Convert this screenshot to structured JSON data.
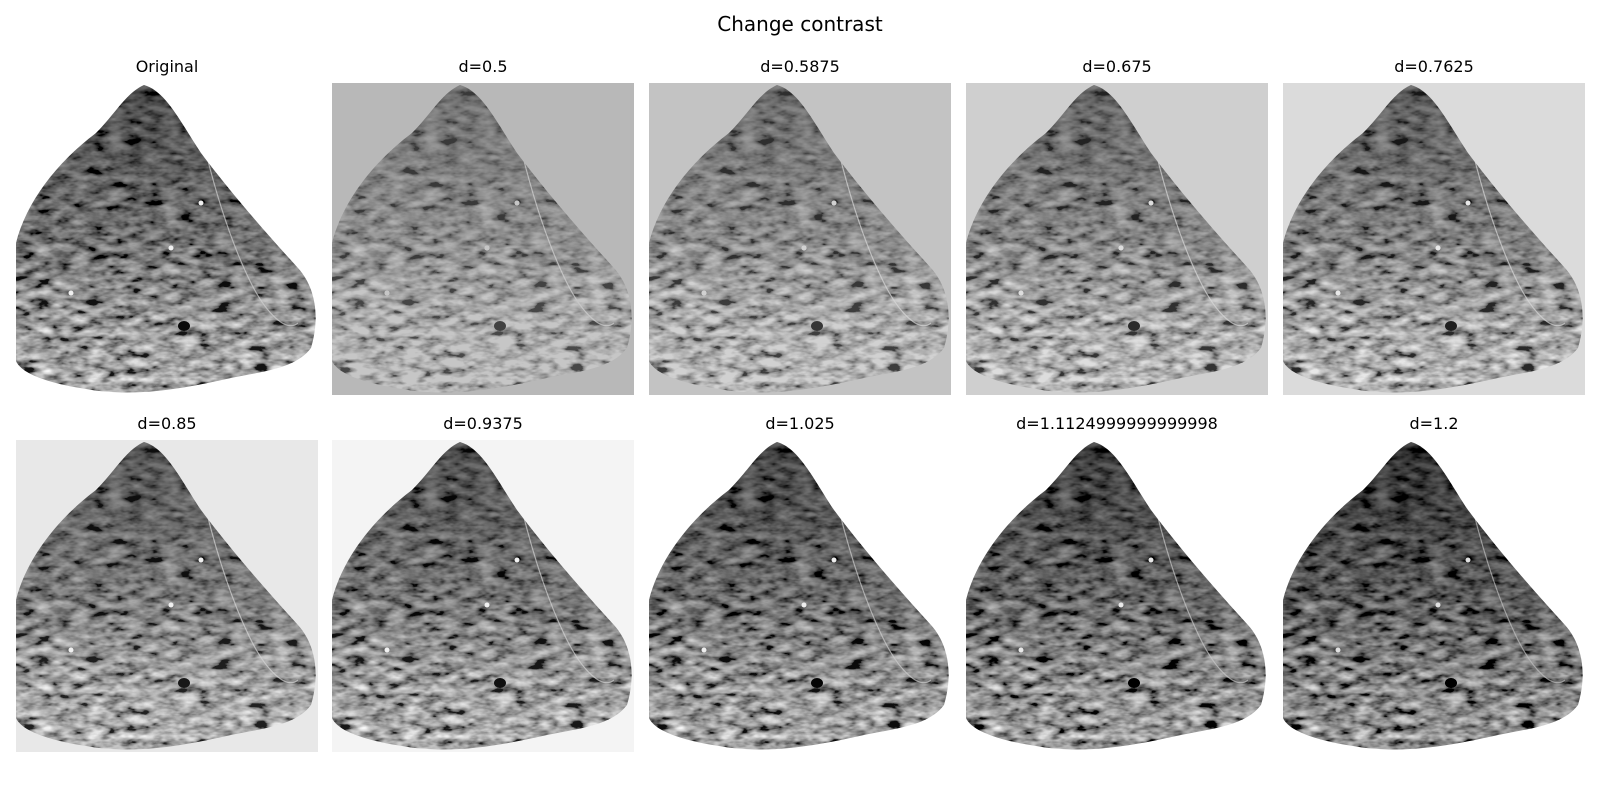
{
  "figure": {
    "title": "Change contrast"
  },
  "panels": [
    {
      "label": "Original",
      "background": "#ffffff",
      "brightness": 1.0,
      "contrast": 1.0
    },
    {
      "label": "d=0.5",
      "background": "#b8b8b8",
      "brightness": 1.35,
      "contrast": 0.55
    },
    {
      "label": "d=0.5875",
      "background": "#c3c3c3",
      "brightness": 1.28,
      "contrast": 0.64
    },
    {
      "label": "d=0.675",
      "background": "#cfcfcf",
      "brightness": 1.2,
      "contrast": 0.73
    },
    {
      "label": "d=0.7625",
      "background": "#dbdbdb",
      "brightness": 1.13,
      "contrast": 0.82
    },
    {
      "label": "d=0.85",
      "background": "#e8e8e8",
      "brightness": 1.08,
      "contrast": 0.89
    },
    {
      "label": "d=0.9375",
      "background": "#f4f4f4",
      "brightness": 1.03,
      "contrast": 0.96
    },
    {
      "label": "d=1.025",
      "background": "#ffffff",
      "brightness": 0.97,
      "contrast": 1.05
    },
    {
      "label": "d=1.1124999999999998",
      "background": "#ffffff",
      "brightness": 0.92,
      "contrast": 1.14
    },
    {
      "label": "d=1.2",
      "background": "#ffffff",
      "brightness": 0.86,
      "contrast": 1.24
    }
  ]
}
